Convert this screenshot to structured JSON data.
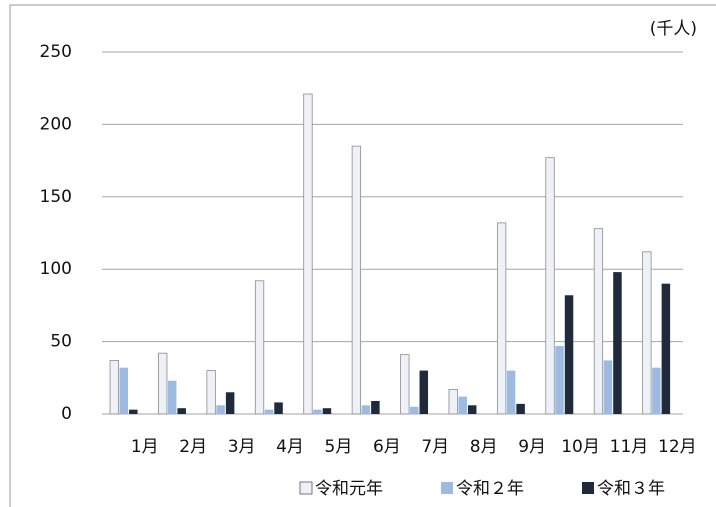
{
  "chart_data": {
    "type": "bar",
    "unit": "(千人)",
    "categories": [
      "1月",
      "2月",
      "3月",
      "4月",
      "5月",
      "6月",
      "7月",
      "8月",
      "9月",
      "10月",
      "11月",
      "12月"
    ],
    "series": [
      {
        "name": "令和元年",
        "color": "#eef1f8",
        "values": [
          37,
          42,
          30,
          92,
          221,
          185,
          41,
          17,
          132,
          177,
          128,
          112
        ]
      },
      {
        "name": "令和２年",
        "color": "#9dbbe0",
        "values": [
          32,
          23,
          6,
          3,
          3,
          6,
          5,
          12,
          30,
          47,
          37,
          32
        ]
      },
      {
        "name": "令和３年",
        "color": "#1f2a3a",
        "values": [
          3,
          4,
          15,
          8,
          4,
          9,
          30,
          6,
          7,
          82,
          98,
          90
        ]
      }
    ],
    "ylim": [
      0,
      250
    ],
    "yticks": [
      0,
      50,
      100,
      150,
      200,
      250
    ],
    "grid": true,
    "legend": "bottom"
  }
}
